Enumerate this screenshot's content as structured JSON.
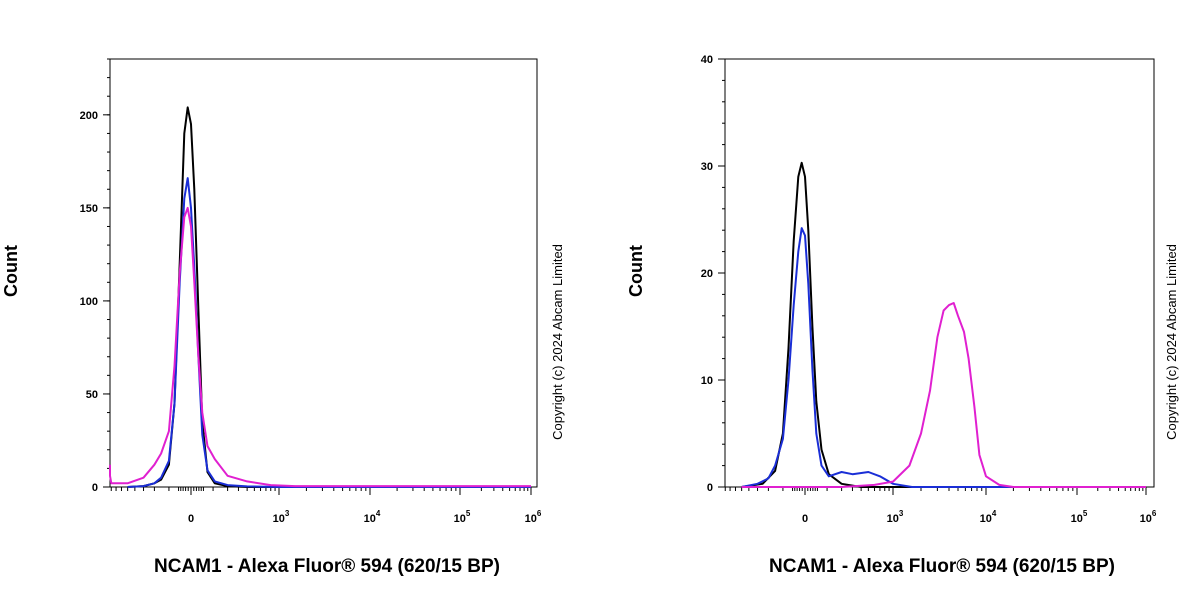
{
  "chart_data": [
    {
      "type": "line",
      "title": "",
      "xlabel": "NCAM1 - Alexa Fluor® 594 (620/15 BP)",
      "ylabel": "Count",
      "ylim": [
        0,
        230
      ],
      "yticks": [
        0,
        50,
        100,
        150,
        200
      ],
      "xscale": "biexponential",
      "xticks": [
        "0",
        "10^3",
        "10^4",
        "10^5",
        "10^6"
      ],
      "copyright": "Copyright (c) 2024 Abcam Limited",
      "series": [
        {
          "name": "black",
          "color": "#000000",
          "points": [
            [
              -500,
              0
            ],
            [
              -300,
              0.5
            ],
            [
              -200,
              2
            ],
            [
              -150,
              4
            ],
            [
              -100,
              12
            ],
            [
              -70,
              45
            ],
            [
              -45,
              120
            ],
            [
              -25,
              190
            ],
            [
              -12,
              204
            ],
            [
              0,
              195
            ],
            [
              12,
              160
            ],
            [
              28,
              95
            ],
            [
              45,
              35
            ],
            [
              70,
              8
            ],
            [
              110,
              2
            ],
            [
              200,
              0.5
            ],
            [
              400,
              0
            ],
            [
              1000,
              0
            ],
            [
              1000000,
              0
            ]
          ]
        },
        {
          "name": "blue",
          "color": "#1a2ed6",
          "points": [
            [
              -500,
              0
            ],
            [
              -300,
              0.5
            ],
            [
              -200,
              2
            ],
            [
              -150,
              5
            ],
            [
              -100,
              14
            ],
            [
              -70,
              45
            ],
            [
              -45,
              110
            ],
            [
              -25,
              155
            ],
            [
              -12,
              166
            ],
            [
              0,
              150
            ],
            [
              12,
              118
            ],
            [
              28,
              70
            ],
            [
              45,
              28
            ],
            [
              70,
              9
            ],
            [
              110,
              3
            ],
            [
              200,
              1
            ],
            [
              400,
              0.3
            ],
            [
              1000,
              0
            ],
            [
              1000000,
              0
            ]
          ]
        },
        {
          "name": "magenta",
          "color": "#e020d0",
          "points": [
            [
              -1200,
              12
            ],
            [
              -1000,
              6
            ],
            [
              -800,
              2
            ],
            [
              -500,
              2
            ],
            [
              -300,
              5
            ],
            [
              -200,
              12
            ],
            [
              -150,
              18
            ],
            [
              -100,
              30
            ],
            [
              -70,
              65
            ],
            [
              -45,
              115
            ],
            [
              -25,
              145
            ],
            [
              -12,
              150
            ],
            [
              0,
              140
            ],
            [
              12,
              110
            ],
            [
              28,
              70
            ],
            [
              45,
              40
            ],
            [
              70,
              22
            ],
            [
              110,
              15
            ],
            [
              200,
              6
            ],
            [
              400,
              3
            ],
            [
              800,
              1
            ],
            [
              1500,
              0.5
            ],
            [
              1000000,
              0.5
            ]
          ]
        }
      ]
    },
    {
      "type": "line",
      "title": "",
      "xlabel": "NCAM1 - Alexa Fluor® 594 (620/15 BP)",
      "ylabel": "Count",
      "ylim": [
        0,
        40
      ],
      "yticks": [
        0,
        10,
        20,
        30,
        40
      ],
      "xscale": "biexponential",
      "xticks": [
        "0",
        "10^3",
        "10^4",
        "10^5",
        "10^6"
      ],
      "copyright": "Copyright (c) 2024 Abcam Limited",
      "series": [
        {
          "name": "black",
          "color": "#000000",
          "points": [
            [
              -500,
              0
            ],
            [
              -250,
              0.3
            ],
            [
              -150,
              1.5
            ],
            [
              -100,
              5
            ],
            [
              -70,
              13
            ],
            [
              -45,
              23
            ],
            [
              -25,
              29
            ],
            [
              -12,
              30.3
            ],
            [
              0,
              29
            ],
            [
              12,
              24
            ],
            [
              28,
              15
            ],
            [
              45,
              8
            ],
            [
              70,
              3.5
            ],
            [
              110,
              1.2
            ],
            [
              200,
              0.3
            ],
            [
              400,
              0
            ],
            [
              1000000,
              0
            ]
          ]
        },
        {
          "name": "blue",
          "color": "#1a2ed6",
          "points": [
            [
              -500,
              0
            ],
            [
              -300,
              0.3
            ],
            [
              -200,
              0.8
            ],
            [
              -150,
              2
            ],
            [
              -100,
              4.5
            ],
            [
              -70,
              10
            ],
            [
              -45,
              17
            ],
            [
              -25,
              22
            ],
            [
              -12,
              24.2
            ],
            [
              0,
              23.5
            ],
            [
              12,
              19
            ],
            [
              28,
              11
            ],
            [
              45,
              5
            ],
            [
              70,
              2
            ],
            [
              110,
              1
            ],
            [
              200,
              1.4
            ],
            [
              300,
              1.2
            ],
            [
              500,
              1.4
            ],
            [
              700,
              1
            ],
            [
              1000,
              0.3
            ],
            [
              1600,
              0
            ],
            [
              1000000,
              0
            ]
          ]
        },
        {
          "name": "magenta",
          "color": "#e020d0",
          "points": [
            [
              -500,
              0
            ],
            [
              200,
              0
            ],
            [
              600,
              0.2
            ],
            [
              1000,
              0.5
            ],
            [
              1500,
              2
            ],
            [
              2000,
              5
            ],
            [
              2500,
              9
            ],
            [
              3000,
              14
            ],
            [
              3500,
              16.5
            ],
            [
              4000,
              17
            ],
            [
              4500,
              17.2
            ],
            [
              5000,
              16
            ],
            [
              5800,
              14.5
            ],
            [
              6500,
              12
            ],
            [
              7500,
              7.5
            ],
            [
              8500,
              3
            ],
            [
              10000,
              1
            ],
            [
              14000,
              0.2
            ],
            [
              20000,
              0
            ],
            [
              1000000,
              0
            ]
          ]
        }
      ]
    }
  ]
}
